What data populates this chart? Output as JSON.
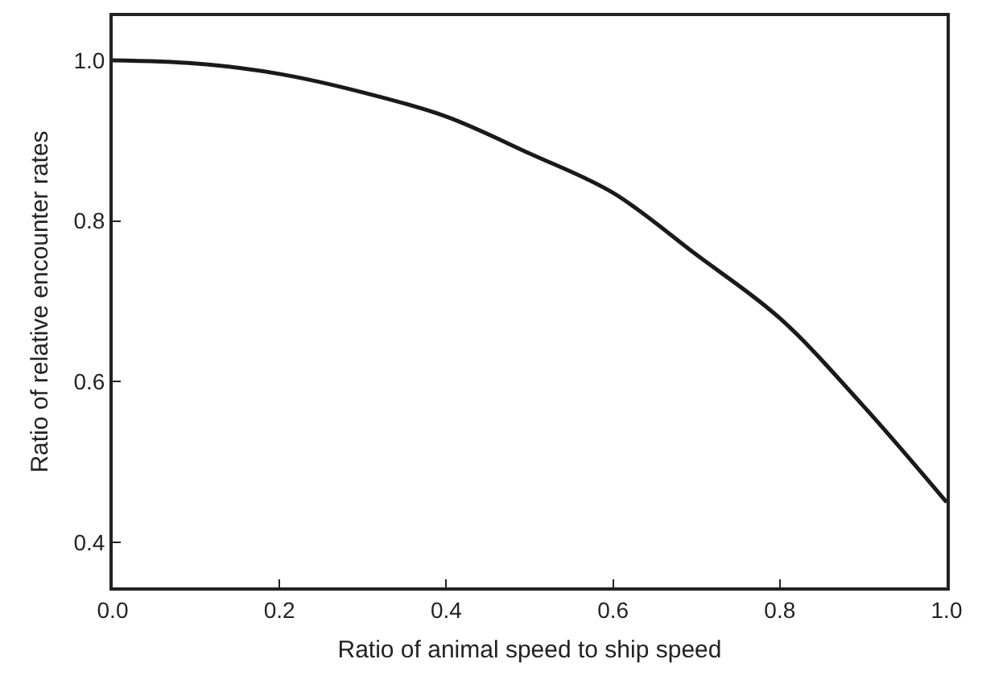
{
  "chart_data": {
    "type": "line",
    "xlabel": "Ratio of animal speed to ship speed",
    "ylabel": "Ratio of relative encounter rates",
    "x": [
      0,
      0.1,
      0.2,
      0.3,
      0.4,
      0.5,
      0.6,
      0.7,
      0.8,
      0.9,
      1.0
    ],
    "series": [
      {
        "color": "#1a1a1a",
        "values": [
          1.0,
          0.996,
          0.983,
          0.96,
          0.93,
          0.884,
          0.835,
          0.758,
          0.679,
          0.57,
          0.45
        ]
      }
    ],
    "xlim": [
      0,
      1
    ],
    "xticks": [
      {
        "value": 0,
        "label": "0.0"
      },
      0.2,
      0.4,
      0.6,
      0.8,
      {
        "value": 1,
        "label": "1.0"
      }
    ],
    "ylim": [
      0.344,
      1.055
    ],
    "yticks": [
      0.4,
      0.6,
      0.8,
      {
        "value": 1,
        "label": "1.0"
      }
    ],
    "grid": false,
    "marker": "none",
    "line_style": "solid"
  }
}
